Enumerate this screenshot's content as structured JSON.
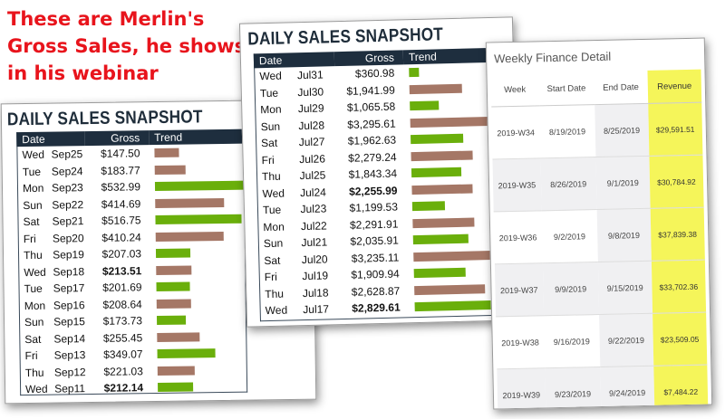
{
  "caption": "These are Merlin's Gross Sales, he shows in his webinar",
  "colors": {
    "caption": "#e8141c",
    "header": "#1e2e3e",
    "bar_up": "#6aaf0b",
    "bar_down": "#a57766",
    "revenue_highlight": "#f5f55a"
  },
  "snapshot_back": {
    "title": "DAILY SALES SNAPSHOT",
    "columns": [
      "Date",
      "Gross",
      "Trend"
    ],
    "rows": [
      {
        "day": "Wed",
        "date": "Sep25",
        "gross": "$147.50",
        "trend": "down",
        "bold": false
      },
      {
        "day": "Tue",
        "date": "Sep24",
        "gross": "$183.77",
        "trend": "down",
        "bold": false
      },
      {
        "day": "Mon",
        "date": "Sep23",
        "gross": "$532.99",
        "trend": "up",
        "bold": false
      },
      {
        "day": "Sun",
        "date": "Sep22",
        "gross": "$414.69",
        "trend": "down",
        "bold": false
      },
      {
        "day": "Sat",
        "date": "Sep21",
        "gross": "$516.75",
        "trend": "up",
        "bold": false
      },
      {
        "day": "Fri",
        "date": "Sep20",
        "gross": "$410.24",
        "trend": "down",
        "bold": false
      },
      {
        "day": "Thu",
        "date": "Sep19",
        "gross": "$207.03",
        "trend": "up",
        "bold": false
      },
      {
        "day": "Wed",
        "date": "Sep18",
        "gross": "$213.51",
        "trend": "down",
        "bold": true
      },
      {
        "day": "Tue",
        "date": "Sep17",
        "gross": "$201.69",
        "trend": "up",
        "bold": false
      },
      {
        "day": "Mon",
        "date": "Sep16",
        "gross": "$208.64",
        "trend": "down",
        "bold": false
      },
      {
        "day": "Sun",
        "date": "Sep15",
        "gross": "$173.73",
        "trend": "up",
        "bold": false
      },
      {
        "day": "Sat",
        "date": "Sep14",
        "gross": "$255.45",
        "trend": "down",
        "bold": false
      },
      {
        "day": "Fri",
        "date": "Sep13",
        "gross": "$349.07",
        "trend": "up",
        "bold": false
      },
      {
        "day": "Thu",
        "date": "Sep12",
        "gross": "$221.03",
        "trend": "down",
        "bold": false
      },
      {
        "day": "Wed",
        "date": "Sep11",
        "gross": "$212.14",
        "trend": "up",
        "bold": true
      }
    ]
  },
  "snapshot_front": {
    "title": "DAILY SALES SNAPSHOT",
    "columns": [
      "Date",
      "Gross",
      "Trend"
    ],
    "rows": [
      {
        "day": "Wed",
        "date": "Jul31",
        "gross": "$360.98",
        "trend": "up",
        "bold": false
      },
      {
        "day": "Tue",
        "date": "Jul30",
        "gross": "$1,941.99",
        "trend": "down",
        "bold": false
      },
      {
        "day": "Mon",
        "date": "Jul29",
        "gross": "$1,065.58",
        "trend": "up",
        "bold": false
      },
      {
        "day": "Sun",
        "date": "Jul28",
        "gross": "$3,295.61",
        "trend": "down",
        "bold": false
      },
      {
        "day": "Sat",
        "date": "Jul27",
        "gross": "$1,962.63",
        "trend": "up",
        "bold": false
      },
      {
        "day": "Fri",
        "date": "Jul26",
        "gross": "$2,279.24",
        "trend": "down",
        "bold": false
      },
      {
        "day": "Thu",
        "date": "Jul25",
        "gross": "$1,843.34",
        "trend": "up",
        "bold": false
      },
      {
        "day": "Wed",
        "date": "Jul24",
        "gross": "$2,255.99",
        "trend": "down",
        "bold": true
      },
      {
        "day": "Tue",
        "date": "Jul23",
        "gross": "$1,199.53",
        "trend": "up",
        "bold": false
      },
      {
        "day": "Mon",
        "date": "Jul22",
        "gross": "$2,291.91",
        "trend": "down",
        "bold": false
      },
      {
        "day": "Sun",
        "date": "Jul21",
        "gross": "$2,035.91",
        "trend": "up",
        "bold": false
      },
      {
        "day": "Sat",
        "date": "Jul20",
        "gross": "$3,235.11",
        "trend": "down",
        "bold": false
      },
      {
        "day": "Fri",
        "date": "Jul19",
        "gross": "$1,909.94",
        "trend": "up",
        "bold": false
      },
      {
        "day": "Thu",
        "date": "Jul18",
        "gross": "$2,628.87",
        "trend": "down",
        "bold": false
      },
      {
        "day": "Wed",
        "date": "Jul17",
        "gross": "$2,829.61",
        "trend": "up",
        "bold": true
      }
    ]
  },
  "weekly": {
    "title": "Weekly Finance Detail",
    "columns": [
      "Week",
      "Start Date",
      "End Date",
      "Revenue"
    ],
    "rows": [
      {
        "week": "2019-W34",
        "start": "8/19/2019",
        "end": "8/25/2019",
        "revenue": "$29,591.51"
      },
      {
        "week": "2019-W35",
        "start": "8/26/2019",
        "end": "9/1/2019",
        "revenue": "$30,784.92"
      },
      {
        "week": "2019-W36",
        "start": "9/2/2019",
        "end": "9/8/2019",
        "revenue": "$37,839.38"
      },
      {
        "week": "2019-W37",
        "start": "9/9/2019",
        "end": "9/15/2019",
        "revenue": "$33,702.36"
      },
      {
        "week": "2019-W38",
        "start": "9/16/2019",
        "end": "9/22/2019",
        "revenue": "$23,509.05"
      },
      {
        "week": "2019-W39",
        "start": "9/23/2019",
        "end": "9/24/2019",
        "revenue": "$7,484.22"
      }
    ]
  }
}
